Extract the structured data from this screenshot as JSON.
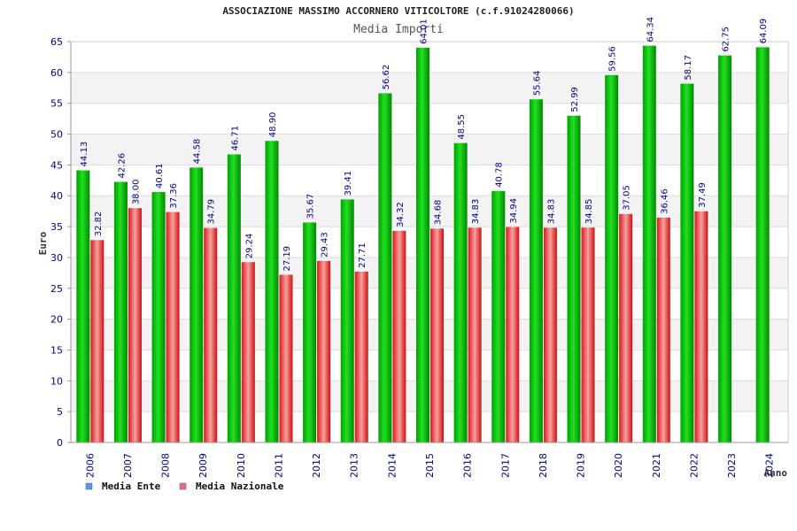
{
  "chart_data": {
    "type": "bar",
    "title": "ASSOCIAZIONE MASSIMO ACCORNERO VITICOLTORE (c.f.91024280066)",
    "subtitle": "Media Importi",
    "xlabel": "Anno",
    "ylabel": "Euro",
    "ylim": [
      0,
      65
    ],
    "yticks": [
      0,
      5,
      10,
      15,
      20,
      25,
      30,
      35,
      40,
      45,
      50,
      55,
      60,
      65
    ],
    "categories": [
      "2006",
      "2007",
      "2008",
      "2009",
      "2010",
      "2011",
      "2012",
      "2013",
      "2014",
      "2015",
      "2016",
      "2017",
      "2018",
      "2019",
      "2020",
      "2021",
      "2022",
      "2023",
      "2024"
    ],
    "series": [
      {
        "name": "Media Ente",
        "color": "#00b000",
        "values": [
          44.13,
          42.26,
          40.61,
          44.58,
          46.71,
          48.9,
          35.67,
          39.41,
          56.62,
          64.01,
          48.55,
          40.78,
          55.64,
          52.99,
          59.56,
          64.34,
          58.17,
          62.75,
          64.09
        ],
        "labels": [
          "44.13",
          "42.26",
          "40.61",
          "44.58",
          "46.71",
          "48.90",
          "35.67",
          "39.41",
          "56.62",
          "64.01",
          "48.55",
          "40.78",
          "55.64",
          "52.99",
          "59.56",
          "64.34",
          "58.17",
          "62.75",
          "64.09"
        ]
      },
      {
        "name": "Media Nazionale",
        "color": "#e02020",
        "values": [
          32.82,
          38.0,
          37.36,
          34.79,
          29.24,
          27.19,
          29.43,
          27.71,
          34.32,
          34.68,
          34.83,
          34.94,
          34.83,
          34.85,
          37.05,
          36.46,
          37.49,
          null,
          null
        ],
        "labels": [
          "32.82",
          "38.00",
          "37.36",
          "34.79",
          "29.24",
          "27.19",
          "29.43",
          "27.71",
          "34.32",
          "34.68",
          "34.83",
          "34.94",
          "34.83",
          "34.85",
          "37.05",
          "36.46",
          "37.49",
          null,
          null
        ]
      }
    ],
    "legend": [
      {
        "label": "Media Ente",
        "color": "#5599ee"
      },
      {
        "label": "Media Nazionale",
        "color": "#ee6699"
      }
    ],
    "grid": true,
    "legend_position": "bottom-left"
  }
}
